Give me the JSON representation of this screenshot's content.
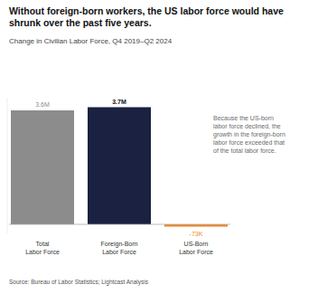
{
  "chart_data": {
    "type": "bar",
    "title": "Without foreign-born workers, the US labor force would have shrunk over the past five years.",
    "subtitle": "Change in Civilian Labor Force, Q4 2019–Q2 2024",
    "categories": [
      "Total Labor Force",
      "Foreign-Born Labor Force",
      "US-Born Labor Force"
    ],
    "values": [
      3.6,
      3.7,
      -0.073
    ],
    "value_labels": [
      "3.6M",
      "3.7M",
      "-73K"
    ],
    "colors": [
      "#8c8c8c",
      "#1b2140",
      "#f0872a"
    ],
    "ylim": [
      -0.3,
      4
    ],
    "data_labels": true,
    "tick_labels": false,
    "grid": false,
    "annotation": "Because the US-born labor force declined, the growth in the foreign-born labor force exceeded that of the total labor force.",
    "source": "Source: Bureau of Labor Statistics; Lightcast Analysis"
  }
}
